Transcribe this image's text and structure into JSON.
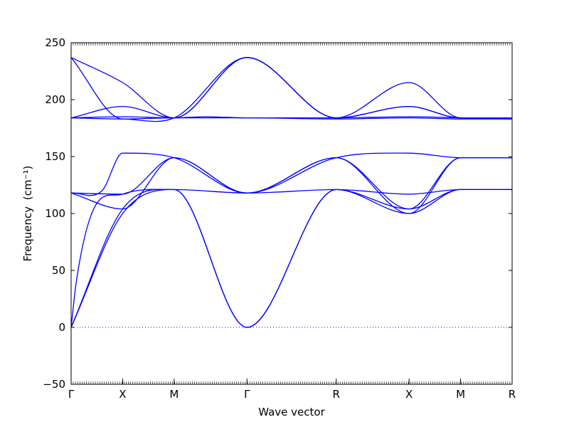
{
  "chart_data": {
    "type": "line",
    "title": "",
    "xlabel": "Wave vector",
    "ylabel": "Frequency",
    "ylabel_unit": "(cm⁻¹)",
    "ylim": [
      -50,
      250
    ],
    "yticks": [
      -50,
      0,
      50,
      100,
      150,
      200,
      250
    ],
    "high_symmetry_points": [
      {
        "label": "Γ",
        "x": 0
      },
      {
        "label": "X",
        "x": 0.5
      },
      {
        "label": "M",
        "x": 1.0
      },
      {
        "label": "Γ",
        "x": 1.707
      },
      {
        "label": "R",
        "x": 2.573
      },
      {
        "label": "X",
        "x": 3.28
      },
      {
        "label": "M",
        "x": 3.78
      },
      {
        "label": "R",
        "x": 4.28
      }
    ],
    "zero_line": {
      "y": 0,
      "style": "dotted",
      "color": "#0000ff"
    },
    "line_color": "#0000ff",
    "series": [
      {
        "x": [
          0,
          0.5,
          1.0,
          1.707,
          2.573,
          3.28,
          3.78,
          4.28
        ],
        "y": [
          0,
          100,
          121,
          0,
          121,
          100,
          121,
          121
        ]
      },
      {
        "x": [
          0,
          0.5,
          1.0,
          1.707,
          2.573,
          3.28,
          3.78,
          4.28
        ],
        "y": [
          0,
          104,
          121,
          0,
          121,
          104,
          121,
          121
        ]
      },
      {
        "x": [
          0,
          0.05,
          0.2,
          0.5,
          1.0,
          1.707,
          2.573,
          3.28,
          3.78,
          4.28
        ],
        "y": [
          0,
          40,
          100,
          117,
          121,
          118,
          121,
          117,
          121,
          121
        ]
      },
      {
        "x": [
          0,
          0.5,
          1.0,
          1.707,
          2.573,
          3.28,
          3.78,
          4.28
        ],
        "y": [
          118,
          104,
          149,
          118,
          149,
          100,
          149,
          149
        ]
      },
      {
        "x": [
          0,
          0.3,
          0.5,
          1.0,
          1.707,
          2.573,
          3.28,
          3.78,
          4.28
        ],
        "y": [
          118,
          120,
          153,
          149,
          118,
          149,
          153,
          149,
          149
        ]
      },
      {
        "x": [
          0,
          0.5,
          1.0,
          1.707,
          2.573,
          3.28,
          3.78,
          4.28
        ],
        "y": [
          118,
          117,
          149,
          118,
          149,
          104,
          149,
          149
        ]
      },
      {
        "x": [
          0,
          0.5,
          1.0,
          1.707,
          2.573,
          3.28,
          3.78,
          4.28
        ],
        "y": [
          184,
          183,
          184,
          184,
          183,
          184,
          183,
          183
        ]
      },
      {
        "x": [
          0,
          0.5,
          1.0,
          1.3,
          1.707,
          2.573,
          3.28,
          3.78,
          4.28
        ],
        "y": [
          184,
          185,
          184,
          185,
          184,
          184,
          185,
          184,
          183
        ]
      },
      {
        "x": [
          0,
          0.5,
          1.0,
          1.707,
          2.573,
          3.28,
          3.78,
          4.28
        ],
        "y": [
          184,
          194,
          184,
          237,
          184,
          194,
          184,
          184
        ]
      },
      {
        "x": [
          0,
          0.5,
          1.0,
          1.707,
          2.573,
          3.28,
          3.78,
          4.28
        ],
        "y": [
          237,
          215,
          184,
          237,
          184,
          215,
          184,
          184
        ]
      },
      {
        "x": [
          0,
          0.5,
          1.0,
          1.707,
          2.573,
          3.28,
          3.78,
          4.28
        ],
        "y": [
          237,
          183,
          184,
          237,
          184,
          194,
          184,
          184
        ]
      }
    ],
    "grid": false,
    "legend": "none"
  }
}
